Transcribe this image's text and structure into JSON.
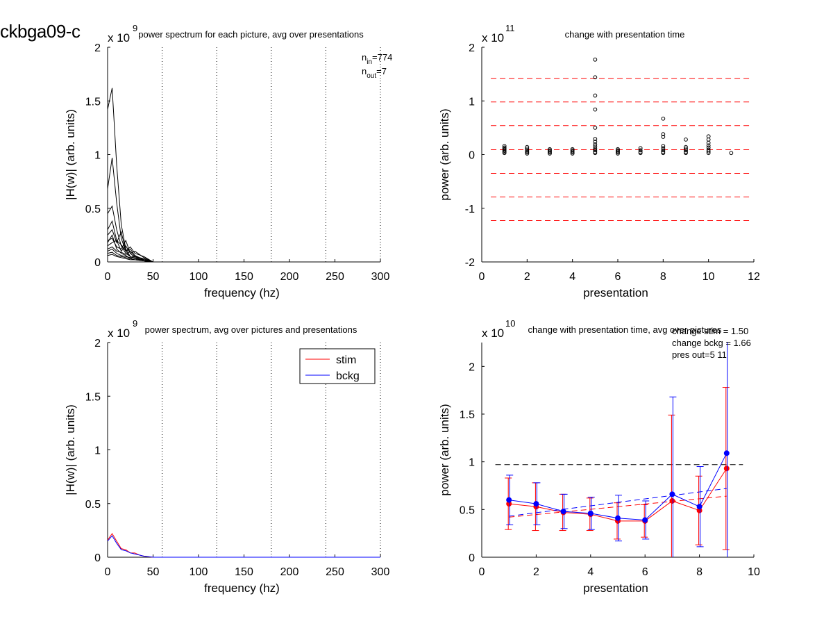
{
  "figure_title": "ckbga09-c",
  "chart_data": [
    {
      "id": "p1",
      "type": "line",
      "title": "power spectrum for each picture, avg over presentations",
      "xlabel": "frequency (hz)",
      "ylabel": "|H(w)| (arb. units)",
      "y_exponent_label": "x 10",
      "y_exponent": "9",
      "xlim": [
        0,
        300
      ],
      "ylim": [
        0,
        2
      ],
      "xticks": [
        "0",
        "50",
        "100",
        "150",
        "200",
        "250",
        "300"
      ],
      "yticks": [
        "0",
        "0.5",
        "1",
        "1.5",
        "2"
      ],
      "vlines": [
        60,
        120,
        180,
        240,
        300
      ],
      "annotation_n_in": "774",
      "annotation_n_out": "7",
      "annotation_n_in_prefix": "n",
      "annotation_n_in_sub": "in",
      "annotation_n_out_prefix": "n",
      "annotation_n_out_sub": "out",
      "series": [
        {
          "x": [
            0,
            5,
            10,
            15,
            20,
            25,
            30,
            40,
            50,
            300
          ],
          "y": [
            1.42,
            1.62,
            0.9,
            0.35,
            0.12,
            0.05,
            0.03,
            0.02,
            0.0,
            0.0
          ]
        },
        {
          "x": [
            0,
            5,
            10,
            15,
            20,
            25,
            30,
            40,
            50,
            300
          ],
          "y": [
            0.68,
            0.97,
            0.55,
            0.22,
            0.1,
            0.05,
            0.03,
            0.02,
            0.0,
            0.0
          ]
        },
        {
          "x": [
            0,
            5,
            10,
            15,
            20,
            25,
            30,
            40,
            50,
            300
          ],
          "y": [
            0.45,
            0.52,
            0.3,
            0.15,
            0.08,
            0.05,
            0.03,
            0.01,
            0.0,
            0.0
          ]
        },
        {
          "x": [
            0,
            5,
            10,
            15,
            20,
            25,
            30,
            40,
            50,
            300
          ],
          "y": [
            0.3,
            0.38,
            0.2,
            0.1,
            0.15,
            0.08,
            0.04,
            0.02,
            0.0,
            0.0
          ]
        },
        {
          "x": [
            0,
            5,
            10,
            15,
            20,
            25,
            30,
            40,
            50,
            300
          ],
          "y": [
            0.25,
            0.3,
            0.18,
            0.28,
            0.1,
            0.12,
            0.06,
            0.02,
            0.0,
            0.0
          ]
        },
        {
          "x": [
            0,
            5,
            10,
            15,
            20,
            25,
            30,
            40,
            50,
            300
          ],
          "y": [
            0.2,
            0.22,
            0.14,
            0.12,
            0.2,
            0.08,
            0.1,
            0.04,
            0.0,
            0.0
          ]
        },
        {
          "x": [
            0,
            5,
            10,
            15,
            20,
            25,
            30,
            40,
            50,
            300
          ],
          "y": [
            0.15,
            0.18,
            0.2,
            0.16,
            0.1,
            0.14,
            0.08,
            0.05,
            0.0,
            0.0
          ]
        },
        {
          "x": [
            0,
            5,
            10,
            15,
            20,
            25,
            30,
            40,
            50,
            300
          ],
          "y": [
            0.12,
            0.14,
            0.1,
            0.09,
            0.07,
            0.1,
            0.05,
            0.03,
            0.0,
            0.0
          ]
        },
        {
          "x": [
            0,
            5,
            10,
            15,
            20,
            25,
            30,
            40,
            50,
            300
          ],
          "y": [
            0.1,
            0.12,
            0.08,
            0.06,
            0.05,
            0.04,
            0.06,
            0.02,
            0.0,
            0.0
          ]
        },
        {
          "x": [
            0,
            5,
            10,
            15,
            20,
            25,
            30,
            40,
            50,
            300
          ],
          "y": [
            0.08,
            0.09,
            0.06,
            0.05,
            0.04,
            0.03,
            0.02,
            0.01,
            0.0,
            0.0
          ]
        },
        {
          "x": [
            0,
            5,
            10,
            15,
            20,
            25,
            30,
            40,
            50,
            300
          ],
          "y": [
            0.06,
            0.07,
            0.05,
            0.04,
            0.03,
            0.02,
            0.02,
            0.01,
            0.0,
            0.0
          ]
        },
        {
          "x": [
            0,
            5,
            10,
            15,
            20,
            25,
            30,
            40,
            50,
            300
          ],
          "y": [
            0.18,
            0.25,
            0.12,
            0.08,
            0.06,
            0.03,
            0.05,
            0.01,
            0.0,
            0.0
          ]
        }
      ]
    },
    {
      "id": "p2",
      "type": "scatter",
      "title": "change with presentation time",
      "xlabel": "presentation",
      "ylabel": "power (arb. units)",
      "y_exponent_label": "x 10",
      "y_exponent": "11",
      "xlim": [
        0,
        12
      ],
      "ylim": [
        -2,
        2
      ],
      "xticks": [
        "0",
        "2",
        "4",
        "6",
        "8",
        "10",
        "12"
      ],
      "yticks": [
        "-2",
        "-1",
        "0",
        "1",
        "2"
      ],
      "hlines": [
        1.42,
        0.98,
        0.54,
        0.09,
        -0.35,
        -0.79,
        -1.23
      ],
      "hline_color": "#ff0000",
      "points": [
        {
          "x": 1,
          "y": 0.16
        },
        {
          "x": 1,
          "y": 0.13
        },
        {
          "x": 1,
          "y": 0.11
        },
        {
          "x": 1,
          "y": 0.09
        },
        {
          "x": 1,
          "y": 0.07
        },
        {
          "x": 1,
          "y": 0.05
        },
        {
          "x": 1,
          "y": 0.03
        },
        {
          "x": 2,
          "y": 0.14
        },
        {
          "x": 2,
          "y": 0.11
        },
        {
          "x": 2,
          "y": 0.08
        },
        {
          "x": 2,
          "y": 0.06
        },
        {
          "x": 2,
          "y": 0.04
        },
        {
          "x": 2,
          "y": 0.02
        },
        {
          "x": 3,
          "y": 0.1
        },
        {
          "x": 3,
          "y": 0.08
        },
        {
          "x": 3,
          "y": 0.06
        },
        {
          "x": 3,
          "y": 0.04
        },
        {
          "x": 3,
          "y": 0.02
        },
        {
          "x": 4,
          "y": 0.1
        },
        {
          "x": 4,
          "y": 0.08
        },
        {
          "x": 4,
          "y": 0.06
        },
        {
          "x": 4,
          "y": 0.04
        },
        {
          "x": 4,
          "y": 0.02
        },
        {
          "x": 5,
          "y": 1.77
        },
        {
          "x": 5,
          "y": 1.44
        },
        {
          "x": 5,
          "y": 1.1
        },
        {
          "x": 5,
          "y": 0.84
        },
        {
          "x": 5,
          "y": 0.5
        },
        {
          "x": 5,
          "y": 0.29
        },
        {
          "x": 5,
          "y": 0.24
        },
        {
          "x": 5,
          "y": 0.19
        },
        {
          "x": 5,
          "y": 0.15
        },
        {
          "x": 5,
          "y": 0.11
        },
        {
          "x": 5,
          "y": 0.08
        },
        {
          "x": 5,
          "y": 0.05
        },
        {
          "x": 5,
          "y": 0.03
        },
        {
          "x": 6,
          "y": 0.1
        },
        {
          "x": 6,
          "y": 0.08
        },
        {
          "x": 6,
          "y": 0.06
        },
        {
          "x": 6,
          "y": 0.04
        },
        {
          "x": 6,
          "y": 0.02
        },
        {
          "x": 7,
          "y": 0.12
        },
        {
          "x": 7,
          "y": 0.08
        },
        {
          "x": 7,
          "y": 0.05
        },
        {
          "x": 7,
          "y": 0.03
        },
        {
          "x": 8,
          "y": 0.67
        },
        {
          "x": 8,
          "y": 0.38
        },
        {
          "x": 8,
          "y": 0.33
        },
        {
          "x": 8,
          "y": 0.16
        },
        {
          "x": 8,
          "y": 0.12
        },
        {
          "x": 8,
          "y": 0.08
        },
        {
          "x": 8,
          "y": 0.05
        },
        {
          "x": 8,
          "y": 0.03
        },
        {
          "x": 9,
          "y": 0.28
        },
        {
          "x": 9,
          "y": 0.14
        },
        {
          "x": 9,
          "y": 0.11
        },
        {
          "x": 9,
          "y": 0.08
        },
        {
          "x": 9,
          "y": 0.05
        },
        {
          "x": 9,
          "y": 0.03
        },
        {
          "x": 10,
          "y": 0.34
        },
        {
          "x": 10,
          "y": 0.28
        },
        {
          "x": 10,
          "y": 0.22
        },
        {
          "x": 10,
          "y": 0.17
        },
        {
          "x": 10,
          "y": 0.13
        },
        {
          "x": 10,
          "y": 0.09
        },
        {
          "x": 10,
          "y": 0.06
        },
        {
          "x": 10,
          "y": 0.03
        },
        {
          "x": 11,
          "y": 0.03
        }
      ]
    },
    {
      "id": "p3",
      "type": "line",
      "title": "power spectrum, avg over pictures and presentations",
      "xlabel": "frequency (hz)",
      "ylabel": "|H(w)| (arb. units)",
      "y_exponent_label": "x 10",
      "y_exponent": "9",
      "xlim": [
        0,
        300
      ],
      "ylim": [
        0,
        2
      ],
      "xticks": [
        "0",
        "50",
        "100",
        "150",
        "200",
        "250",
        "300"
      ],
      "yticks": [
        "0",
        "0.5",
        "1",
        "1.5",
        "2"
      ],
      "vlines": [
        60,
        120,
        180,
        240,
        300
      ],
      "legend_position": "top-right",
      "series": [
        {
          "name": "stim",
          "color": "#ff0000",
          "x": [
            0,
            5,
            10,
            15,
            20,
            25,
            30,
            35,
            40,
            50,
            300
          ],
          "y": [
            0.16,
            0.22,
            0.15,
            0.08,
            0.07,
            0.04,
            0.04,
            0.02,
            0.01,
            0.0,
            0.0
          ]
        },
        {
          "name": "bckg",
          "color": "#0000ff",
          "x": [
            0,
            5,
            10,
            15,
            20,
            25,
            30,
            35,
            40,
            50,
            300
          ],
          "y": [
            0.15,
            0.2,
            0.13,
            0.07,
            0.06,
            0.04,
            0.03,
            0.02,
            0.01,
            0.0,
            0.0
          ]
        }
      ]
    },
    {
      "id": "p4",
      "type": "line",
      "title": "change with presentation time, avg over pictures",
      "xlabel": "presentation",
      "ylabel": "power (arb. units)",
      "y_exponent_label": "x 10",
      "y_exponent": "10",
      "xlim": [
        0,
        10
      ],
      "ylim": [
        0,
        2.25
      ],
      "xticks": [
        "0",
        "2",
        "4",
        "6",
        "8",
        "10"
      ],
      "yticks": [
        "0",
        "0.5",
        "1",
        "1.5",
        "2"
      ],
      "annotations": [
        "change stim = 1.50",
        "change bckg = 1.66",
        "pres out=5 11"
      ],
      "hline": 0.97,
      "series": [
        {
          "name": "stim",
          "color": "#ff0000",
          "x": [
            1,
            2,
            3,
            4,
            5,
            6,
            7,
            8,
            9
          ],
          "y": [
            0.56,
            0.53,
            0.47,
            0.45,
            0.38,
            0.38,
            0.59,
            0.49,
            0.93
          ],
          "err": [
            0.27,
            0.25,
            0.19,
            0.17,
            0.19,
            0.17,
            0.9,
            0.36,
            0.85
          ],
          "trend": [
            0.42,
            0.64
          ]
        },
        {
          "name": "bckg",
          "color": "#0000ff",
          "x": [
            1,
            2,
            3,
            4,
            5,
            6,
            7,
            8,
            9
          ],
          "y": [
            0.6,
            0.56,
            0.48,
            0.46,
            0.41,
            0.39,
            0.66,
            0.53,
            1.09
          ],
          "err": [
            0.26,
            0.22,
            0.18,
            0.17,
            0.24,
            0.2,
            1.02,
            0.42,
            1.36
          ],
          "trend": [
            0.43,
            0.72
          ]
        }
      ]
    }
  ]
}
